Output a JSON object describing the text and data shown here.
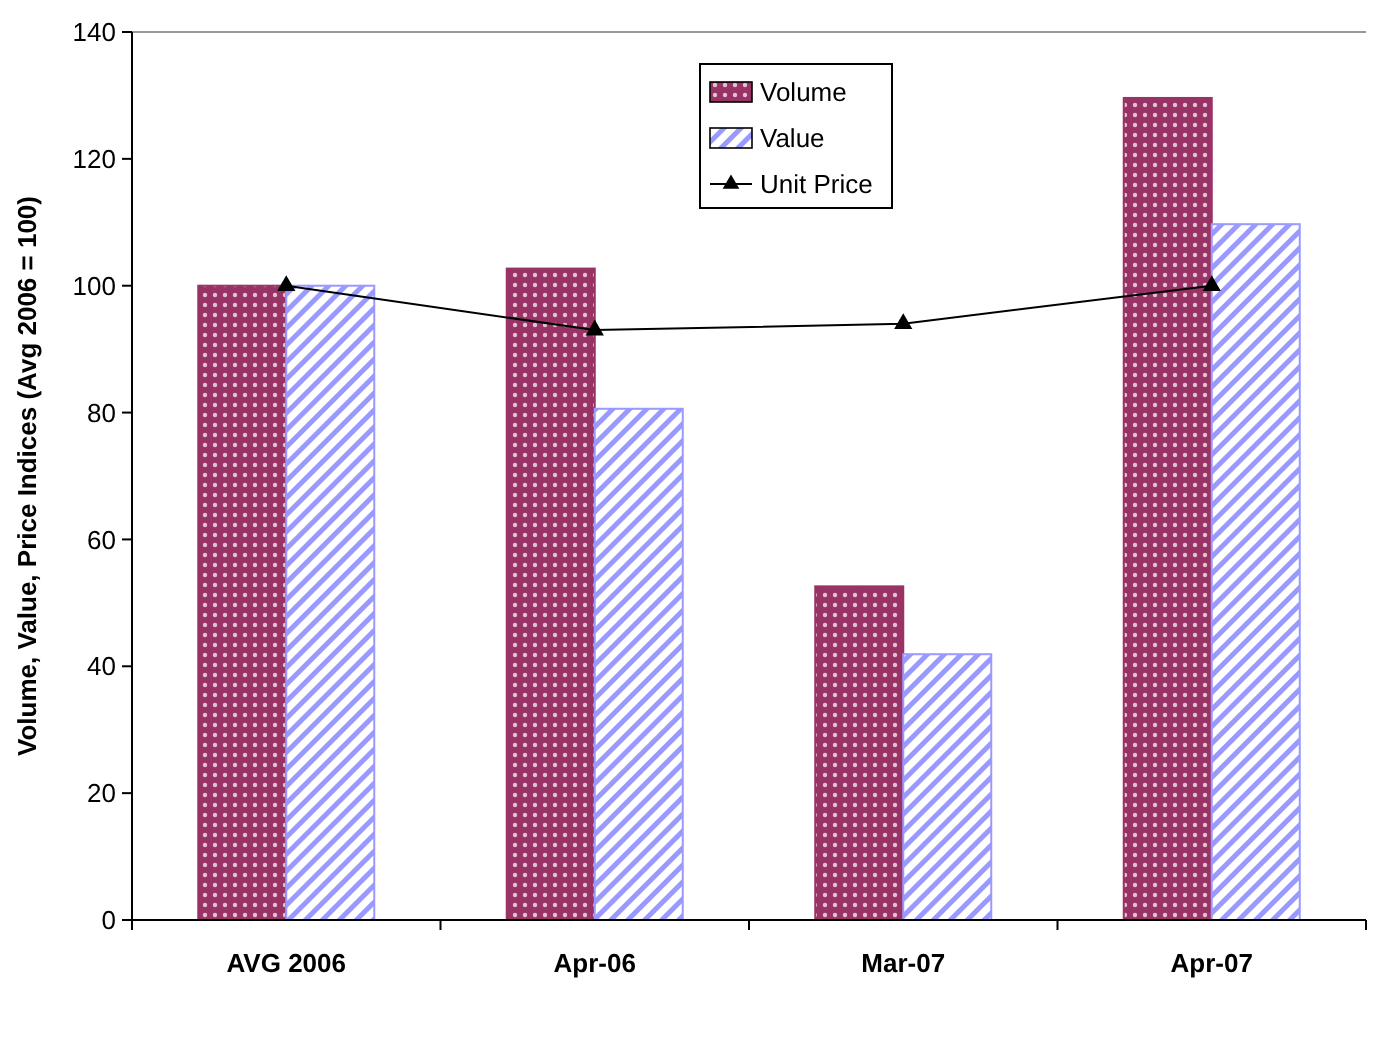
{
  "chart_data": {
    "type": "bar",
    "ylabel": "Volume, Value, Price Indices (Avg 2006 = 100)",
    "categories": [
      "AVG 2006",
      "Apr-06",
      "Mar-07",
      "Apr-07"
    ],
    "series": [
      {
        "name": "Volume",
        "color": "#993366",
        "values": [
          100,
          102.7,
          52.6,
          129.6
        ]
      },
      {
        "name": "Value",
        "color": "#9999ff",
        "values": [
          100,
          80.6,
          41.9,
          109.7
        ]
      },
      {
        "name": "Unit Price",
        "type": "line",
        "color": "#000000",
        "marker": "triangle",
        "values": [
          100,
          93,
          94,
          100
        ]
      }
    ],
    "ylim": [
      0,
      140
    ],
    "yticks": [
      0,
      20,
      40,
      60,
      80,
      100,
      120,
      140
    ],
    "grid": false,
    "legend": "top"
  }
}
